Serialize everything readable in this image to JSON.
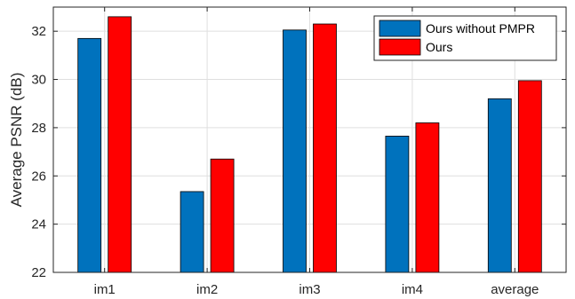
{
  "chart_data": {
    "type": "bar",
    "title": "",
    "xlabel": "",
    "ylabel": "Average PSNR (dB)",
    "categories": [
      "im1",
      "im2",
      "im3",
      "im4",
      "average"
    ],
    "series": [
      {
        "name": "Ours without PMPR",
        "color": "#0072BD",
        "values": [
          31.7,
          25.35,
          32.05,
          27.65,
          29.2
        ]
      },
      {
        "name": "Ours",
        "color": "#FF0000",
        "values": [
          32.6,
          26.7,
          32.3,
          28.2,
          29.95
        ]
      }
    ],
    "ylim": [
      22,
      33
    ],
    "yticks": [
      22,
      24,
      26,
      28,
      30,
      32
    ],
    "grid": true,
    "legend_position": "top-right"
  }
}
